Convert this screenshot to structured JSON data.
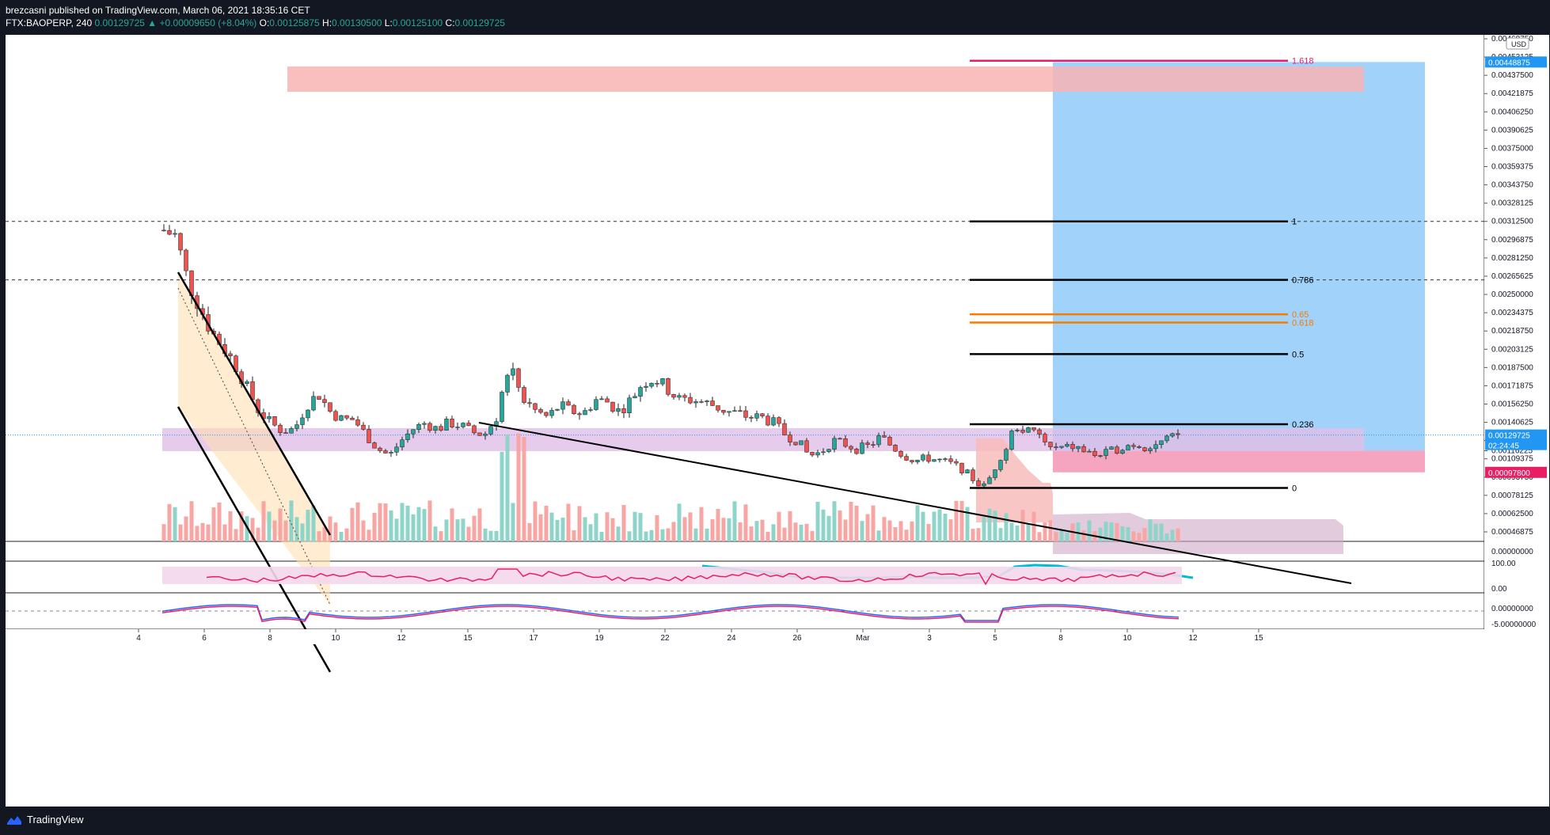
{
  "header": {
    "publisher_line": "brezcasni published on TradingView.com, March 06, 2021 18:35:16 CET",
    "symbol": "FTX:BAOPERP, 240",
    "last": "0.00129725",
    "change": "+0.00009650 (+8.04%)",
    "o_label": "O:",
    "o_value": "0.00125875",
    "h_label": "H:",
    "h_value": "0.00130500",
    "l_label": "L:",
    "l_value": "0.00125100",
    "c_label": "C:",
    "c_value": "0.00129725"
  },
  "footer": {
    "brand": "TradingView"
  },
  "price_axis": {
    "currency": "USD",
    "labels": [
      "0.00468750",
      "0.00453125",
      "0.00437500",
      "0.00421875",
      "0.00406250",
      "0.00390625",
      "0.00375000",
      "0.00359375",
      "0.00343750",
      "0.00328125",
      "0.00312500",
      "0.00296875",
      "0.00281250",
      "0.00265625",
      "0.00250000",
      "0.00234375",
      "0.00218750",
      "0.00203125",
      "0.00187500",
      "0.00171875",
      "0.00156250",
      "0.00140625",
      "0.00125000",
      "0.00116225",
      "0.00109375",
      "0.00093750",
      "0.00078125",
      "0.00062500",
      "0.00046875"
    ],
    "tag_top": "0.00448875",
    "tag_current": "0.00129725",
    "tag_countdown": "02:24:45",
    "tag_stop": "0.00097800"
  },
  "rsi_axis": {
    "labels": [
      "100.00",
      "0.00"
    ]
  },
  "macd_axis": {
    "labels": [
      "0.00000000",
      "-5.00000000"
    ]
  },
  "volume_axis": {
    "labels": [
      "0.00000000"
    ]
  },
  "time_axis": {
    "labels": [
      "4",
      "6",
      "8",
      "10",
      "12",
      "15",
      "17",
      "19",
      "22",
      "24",
      "26",
      "Mar",
      "3",
      "5",
      "8",
      "10",
      "12",
      "15"
    ]
  },
  "fib_levels": [
    {
      "label": "1.618",
      "value": 0.0045,
      "color": "#e91e63"
    },
    {
      "label": "1",
      "value": 0.003125,
      "color": "#000000"
    },
    {
      "label": "0.786",
      "value": 0.002625,
      "color": "#000000"
    },
    {
      "label": "0.65",
      "value": 0.00233,
      "color": "#f57c00"
    },
    {
      "label": "0.618",
      "value": 0.00226,
      "color": "#f57c00"
    },
    {
      "label": "0.5",
      "value": 0.00199,
      "color": "#000000"
    },
    {
      "label": "0.236",
      "value": 0.00139,
      "color": "#000000"
    },
    {
      "label": "0",
      "value": 0.000845,
      "color": "#000000"
    }
  ],
  "colors": {
    "up": "#26a69a",
    "down": "#ef5350",
    "volume_up": "#8fd4c9",
    "volume_down": "#f7a6a4",
    "tp_zone": "#90caf9",
    "sl_zone": "#f48fb1",
    "resistance_zone": "#f8b4b4",
    "support_zone": "#e1bee7",
    "ma_line": "#00bcd4",
    "rsi": "#e91e63",
    "macd": "#2962ff",
    "signal": "#e91e63"
  }
}
